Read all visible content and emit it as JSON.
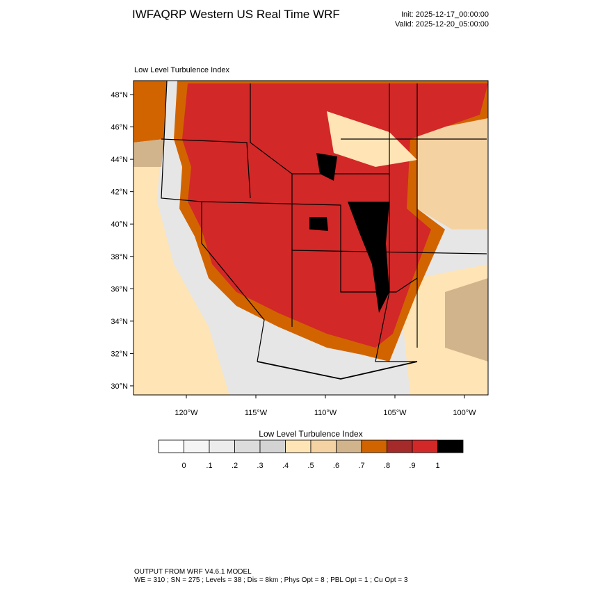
{
  "header": {
    "title": "IWFAQRP Western US Real Time WRF",
    "init": "Init: 2025-12-17_00:00:00",
    "valid": "Valid: 2025-12-20_05:00:00"
  },
  "map": {
    "subtitle": "Low Level Turbulence Index",
    "lat_labels": [
      "48°N",
      "46°N",
      "44°N",
      "42°N",
      "40°N",
      "38°N",
      "36°N",
      "34°N",
      "32°N",
      "30°N"
    ],
    "lon_labels": [
      "120°W",
      "115°W",
      "110°W",
      "105°W",
      "100°W"
    ]
  },
  "colorbar": {
    "title": "Low Level Turbulence Index",
    "colors": [
      "#ffffff",
      "#f5f5f5",
      "#ececec",
      "#dcdcdc",
      "#d3d3d3",
      "#ffe4b5",
      "#f5d2a2",
      "#d2b48c",
      "#d26400",
      "#a52a2a",
      "#d22828",
      "#000000"
    ],
    "labels": [
      "0",
      ".1",
      ".2",
      ".3",
      ".4",
      ".5",
      ".6",
      ".7",
      ".8",
      ".9",
      "1"
    ]
  },
  "footer": {
    "lines": [
      "OUTPUT FROM WRF V4.6.1 MODEL",
      "WE = 310 ; SN = 275 ; Levels = 38 ; Dis = 8km ; Phys Opt = 8 ; PBL Opt = 1 ; Cu Opt = 3"
    ]
  }
}
